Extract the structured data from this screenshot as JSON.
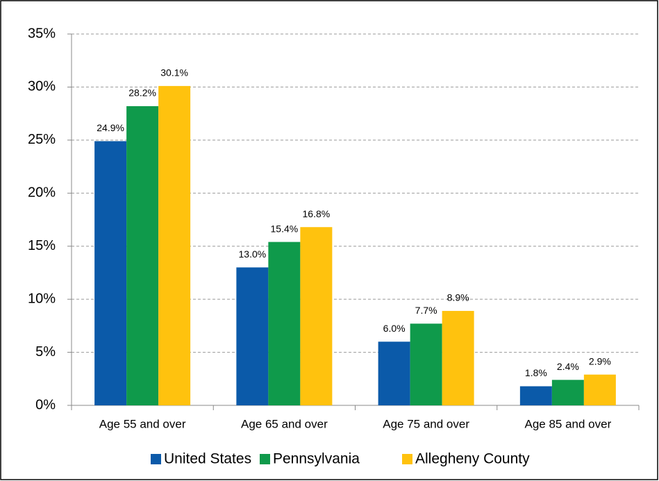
{
  "chart_data": {
    "type": "bar",
    "categories": [
      "Age 55 and over",
      "Age 65 and over",
      "Age 75 and over",
      "Age 85 and over"
    ],
    "series": [
      {
        "name": "United States",
        "color": "#0b5aa9",
        "values": [
          24.9,
          13.0,
          6.0,
          1.8
        ],
        "value_labels": [
          "24.9%",
          "13.0%",
          "6.0%",
          "1.8%"
        ]
      },
      {
        "name": "Pennsylvania",
        "color": "#0f9a4b",
        "values": [
          28.2,
          15.4,
          7.7,
          2.4
        ],
        "value_labels": [
          "28.2%",
          "15.4%",
          "7.7%",
          "2.4%"
        ]
      },
      {
        "name": "Allegheny County",
        "color": "#ffc20e",
        "values": [
          30.1,
          16.8,
          8.9,
          2.9
        ],
        "value_labels": [
          "30.1%",
          "16.8%",
          "8.9%",
          "2.9%"
        ]
      }
    ],
    "ylim": [
      0,
      35
    ],
    "yticks": [
      {
        "value": 0,
        "label": "0%"
      },
      {
        "value": 5,
        "label": "5%"
      },
      {
        "value": 10,
        "label": "10%"
      },
      {
        "value": 15,
        "label": "15%"
      },
      {
        "value": 20,
        "label": "20%"
      },
      {
        "value": 25,
        "label": "25%"
      },
      {
        "value": 30,
        "label": "30%"
      },
      {
        "value": 35,
        "label": "35%"
      }
    ],
    "grid": true,
    "legend": "bottom"
  }
}
